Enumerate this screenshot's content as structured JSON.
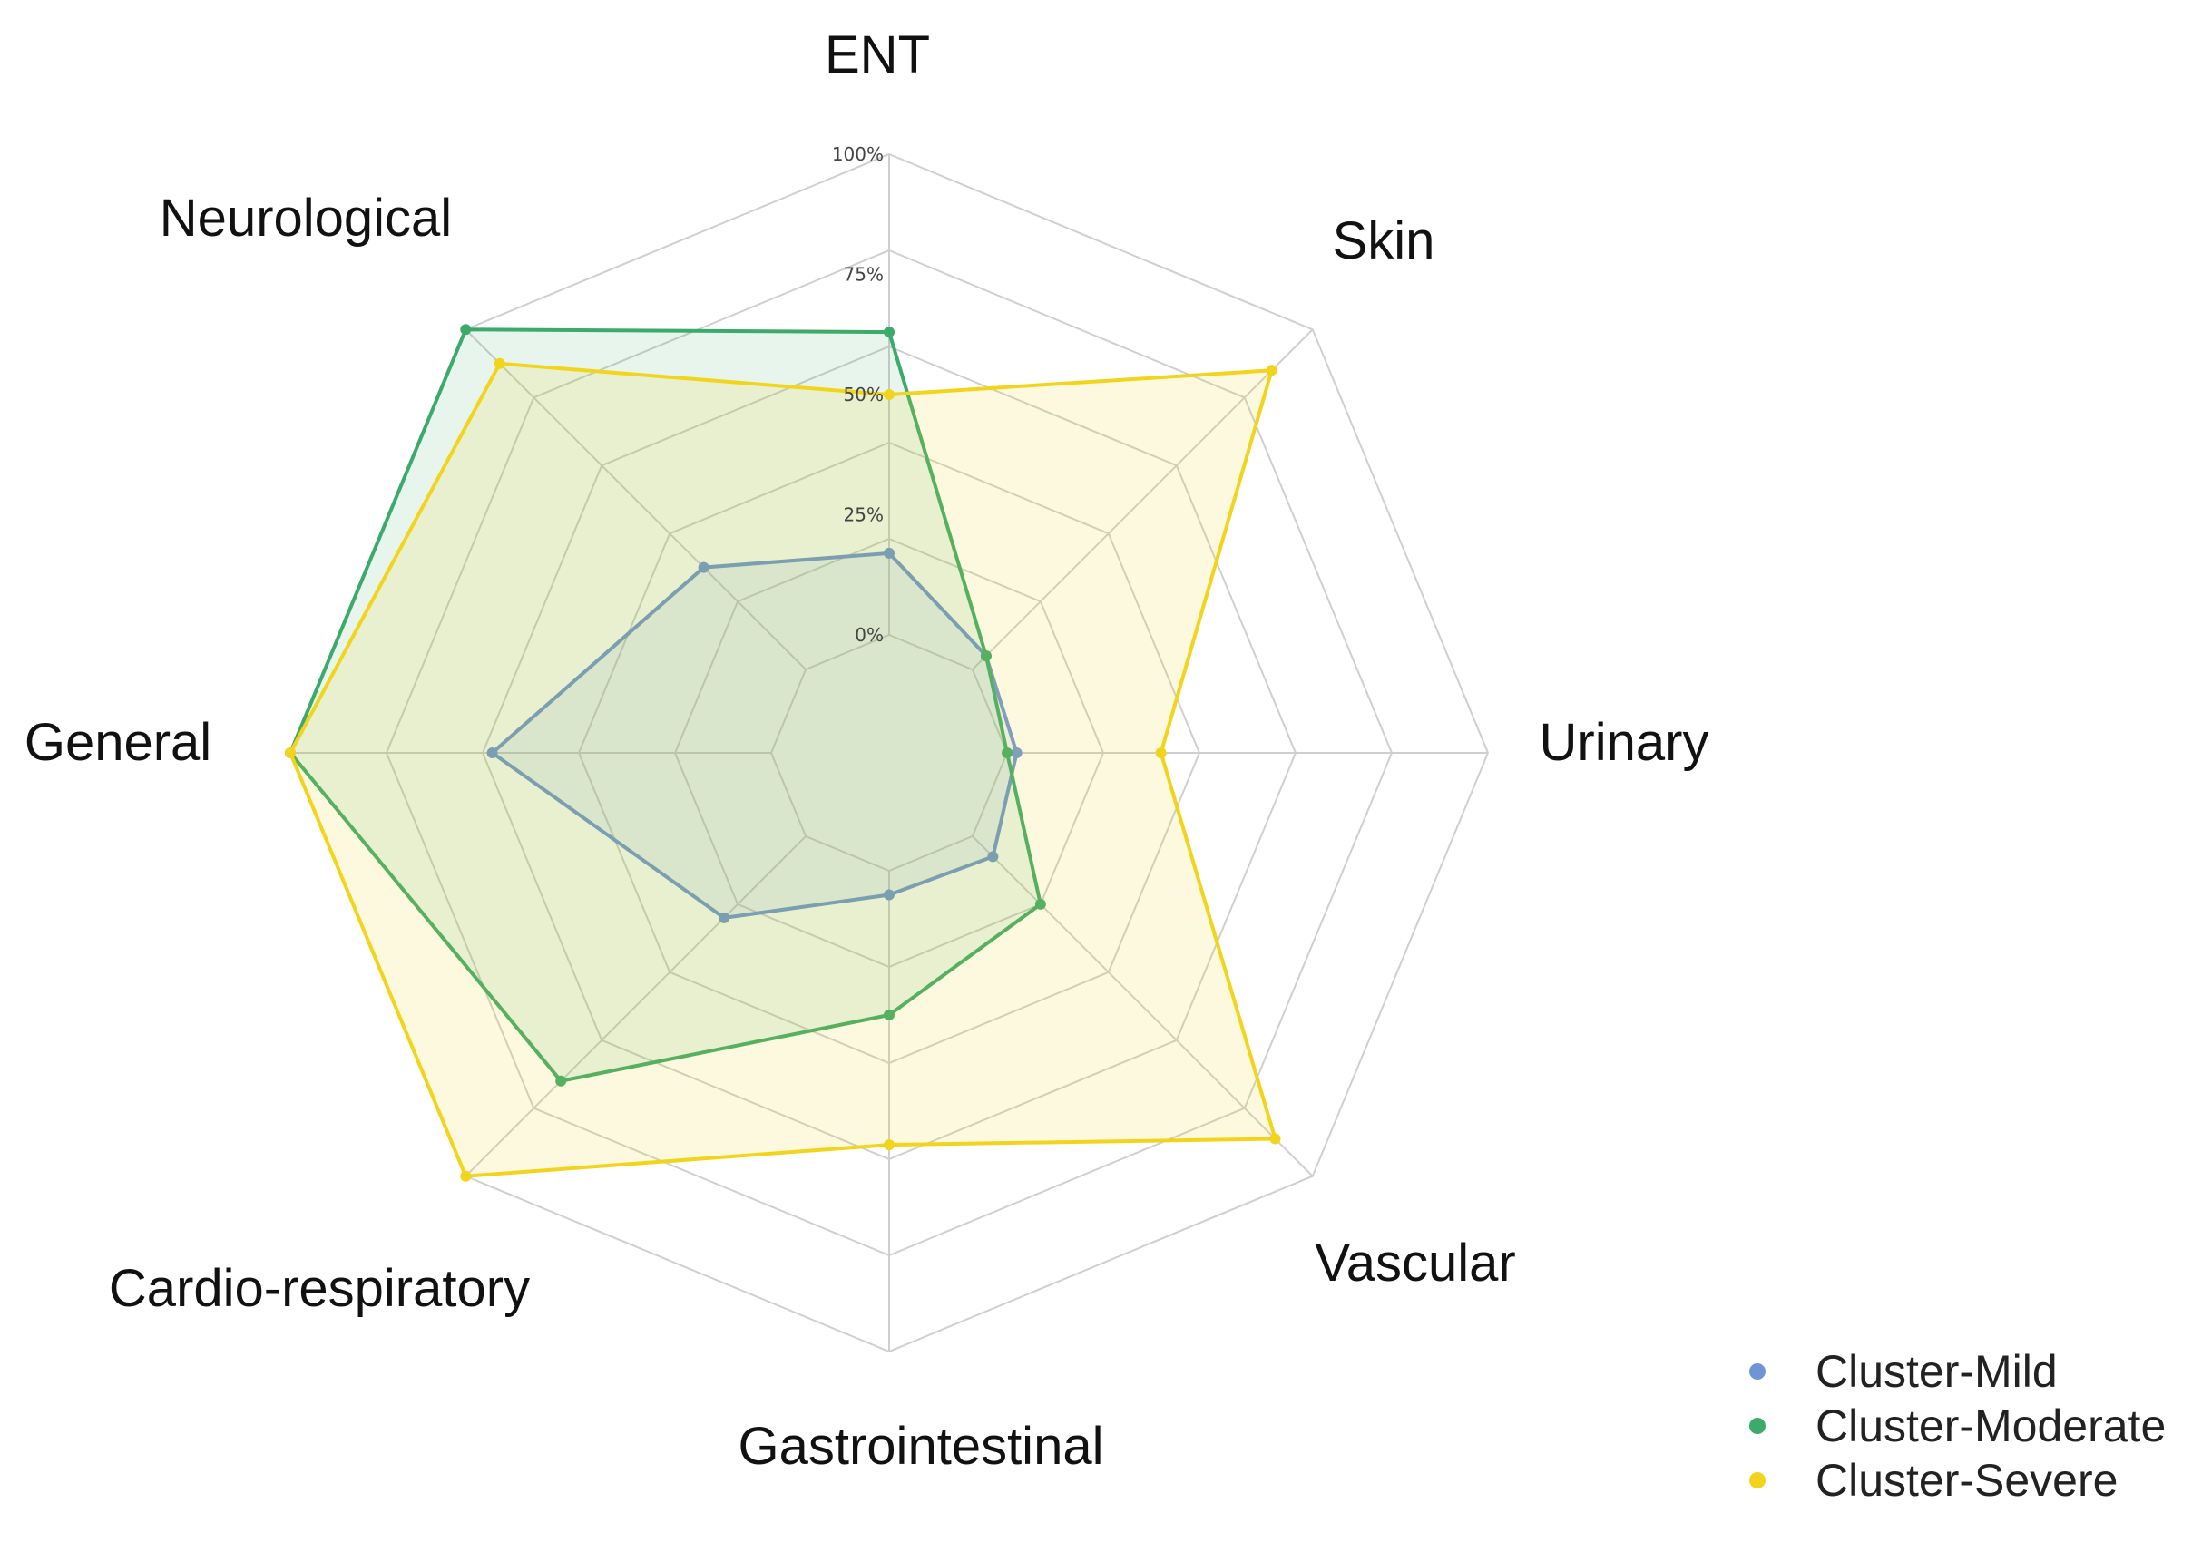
{
  "chart_data": {
    "type": "radar",
    "title": "",
    "axes": [
      "ENT",
      "Skin",
      "Urinary",
      "Vascular",
      "Gastrointestinal",
      "Cardio-respiratory",
      "General",
      "Neurological"
    ],
    "ticks": [
      "0%",
      "25%",
      "50%",
      "75%",
      "100%"
    ],
    "range": [
      0,
      100
    ],
    "series": [
      {
        "name": "Cluster-Mild",
        "color": "#6f95d6",
        "fill_opacity": 0.12,
        "values": [
          17,
          4,
          2,
          6,
          5,
          24,
          58,
          30
        ]
      },
      {
        "name": "Cluster-Moderate",
        "color": "#3caa6a",
        "fill_opacity": 0.12,
        "values": [
          63,
          4,
          0,
          20,
          30,
          72,
          100,
          100
        ]
      },
      {
        "name": "Cluster-Severe",
        "color": "#f2d41c",
        "fill_opacity": 0.14,
        "values": [
          50,
          88,
          32,
          89,
          57,
          100,
          100,
          90
        ]
      }
    ],
    "legend": "bottom-right"
  }
}
